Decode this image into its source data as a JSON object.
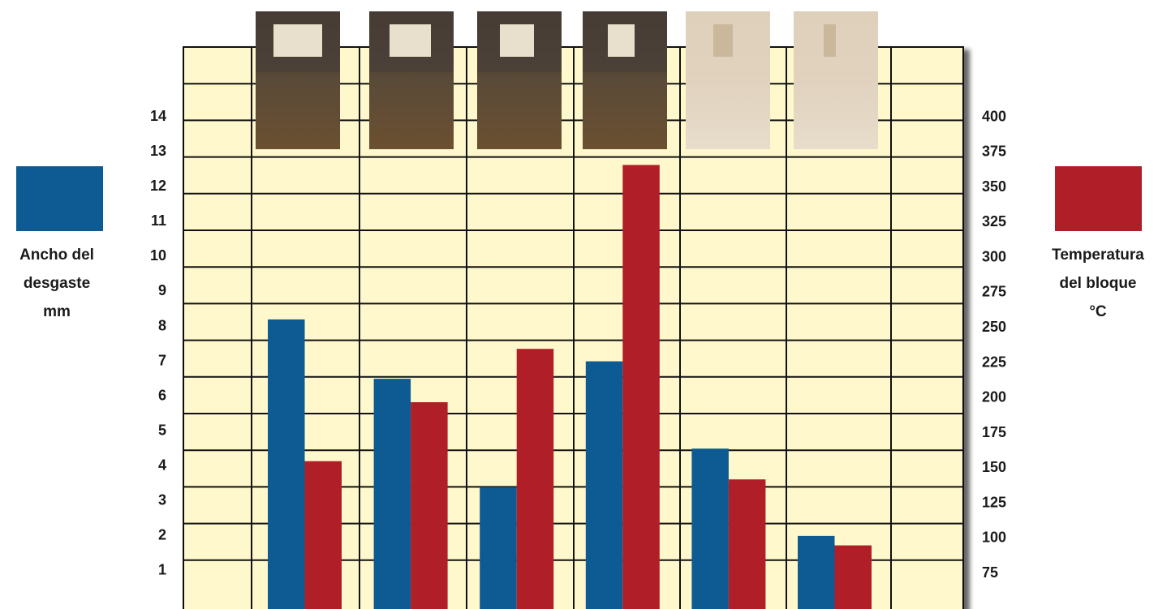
{
  "chart_data": {
    "type": "bar",
    "ylim": [
      0,
      16
    ],
    "yticks": [
      1,
      2,
      3,
      4,
      5,
      6,
      7,
      8,
      9,
      10,
      11,
      12,
      13,
      14
    ],
    "y2lim": [
      52,
      450
    ],
    "y2ticks": [
      75,
      100,
      125,
      150,
      175,
      200,
      225,
      250,
      275,
      300,
      325,
      350,
      375,
      400
    ],
    "series": [
      {
        "name": "Ancho del\ndesgaste\nmm",
        "color": "#0e5a92",
        "values": [
          8.2,
          6.5,
          3.4,
          7.0,
          4.5,
          2.0
        ]
      },
      {
        "name": "Temperatura\ndel bloque\n°C",
        "color": "#b01e28",
        "axis": "y2",
        "values": [
          155,
          197,
          235,
          366,
          142,
          95
        ]
      }
    ]
  }
}
